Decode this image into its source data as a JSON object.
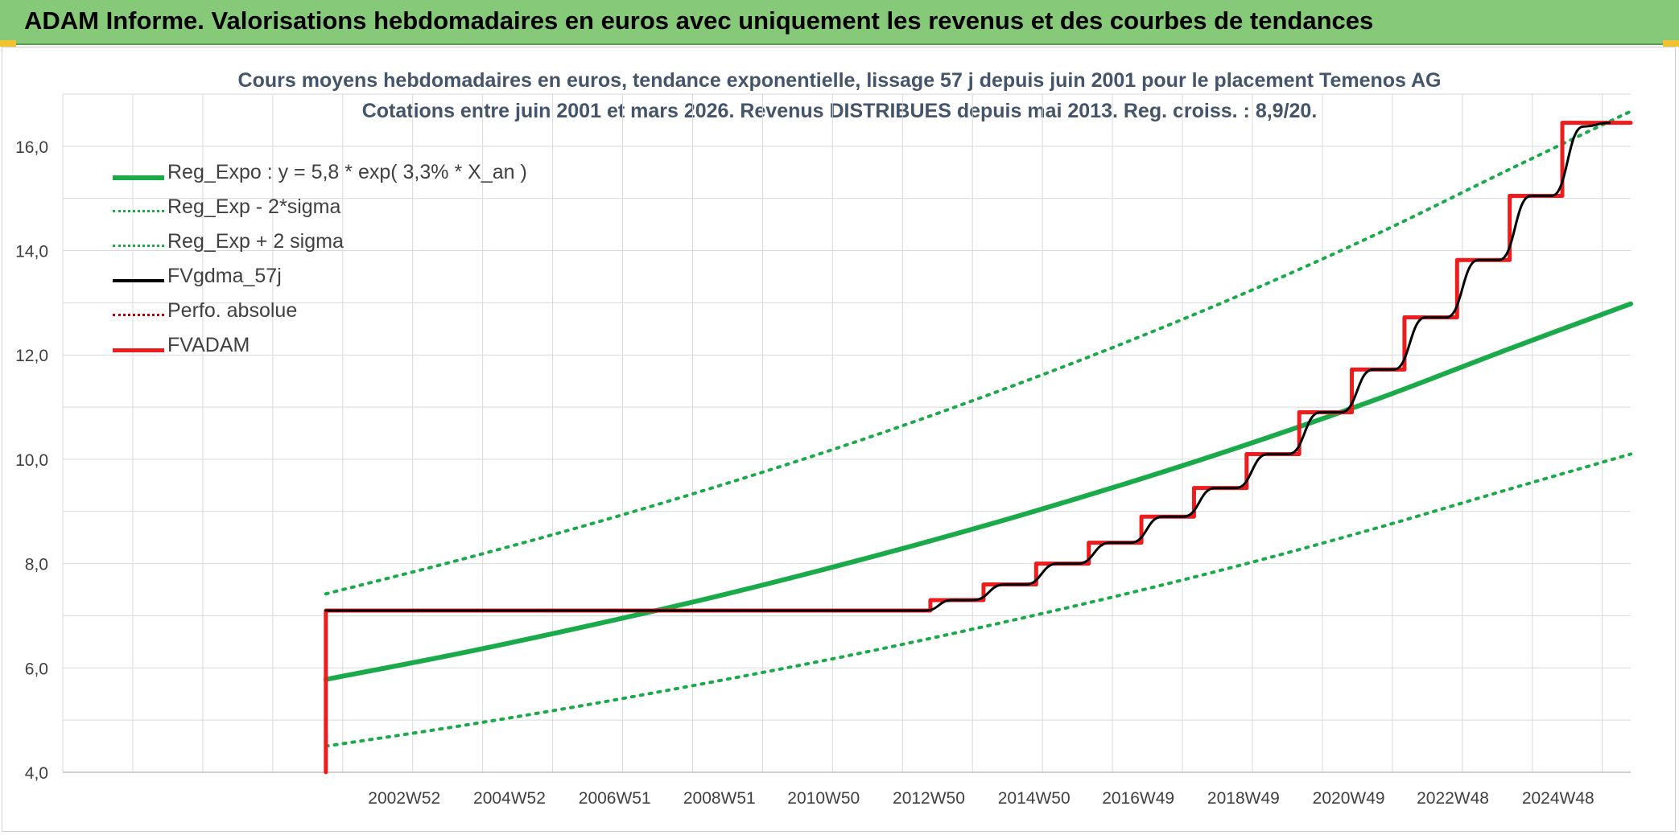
{
  "banner": {
    "title": "ADAM Informe. Valorisations hebdomadaires en euros avec uniquement les revenus et des courbes de tendances"
  },
  "chart_data": {
    "type": "line",
    "title": "Cours moyens hebdomadaires en euros, tendance exponentielle, lissage 57 j depuis juin 2001 pour le placement Temenos AG",
    "subtitle": "Cotations entre juin 2001 et mars 2026. Revenus DISTRIBUES depuis mai 2013. Reg. croiss. : 8,9/20.",
    "xlabel": "",
    "ylabel": "",
    "ylim": [
      4,
      17
    ],
    "xlim": [
      1996.5,
      2026.3
    ],
    "y_ticks": [
      4,
      6,
      8,
      10,
      12,
      14,
      16
    ],
    "y_tick_labels": [
      "4,0",
      "6,0",
      "8,0",
      "10,0",
      "12,0",
      "14,0",
      "16,0"
    ],
    "x_ticks": [
      2002.99,
      2004.99,
      2006.99,
      2008.98,
      2010.96,
      2012.96,
      2014.96,
      2016.94,
      2018.94,
      2020.94,
      2022.92,
      2024.92
    ],
    "x_tick_labels": [
      "2002W52",
      "2004W52",
      "2006W51",
      "2008W51",
      "2010W50",
      "2012W50",
      "2014W50",
      "2016W49",
      "2018W49",
      "2020W49",
      "2022W48",
      "2024W48"
    ],
    "grid": true,
    "legend_position": "top-left",
    "series": [
      {
        "name": "Reg_Expo : y = 5,8 * exp( 3,3% *  X_an )",
        "color": "#1aaa4a",
        "style": "solid",
        "x": [
          2001.5,
          2004.0,
          2006.5,
          2009.0,
          2011.5,
          2014.0,
          2016.5,
          2019.0,
          2021.5,
          2024.0,
          2026.3
        ],
        "values": [
          5.78,
          6.27,
          6.81,
          7.39,
          8.03,
          8.72,
          9.47,
          10.28,
          11.16,
          12.12,
          12.98
        ]
      },
      {
        "name": "Reg_Exp - 2*sigma",
        "color": "#1aaa4a",
        "style": "dotted",
        "x": [
          2001.5,
          2004.0,
          2006.5,
          2009.0,
          2011.5,
          2014.0,
          2016.5,
          2019.0,
          2021.5,
          2024.0,
          2026.3
        ],
        "values": [
          4.5,
          4.88,
          5.3,
          5.76,
          6.25,
          6.79,
          7.37,
          8.0,
          8.69,
          9.43,
          10.1
        ]
      },
      {
        "name": "Reg_Exp + 2 sigma",
        "color": "#1aaa4a",
        "style": "dotted",
        "x": [
          2001.5,
          2004.0,
          2006.5,
          2009.0,
          2011.5,
          2014.0,
          2016.5,
          2019.0,
          2021.5,
          2024.0,
          2026.3
        ],
        "values": [
          7.42,
          8.06,
          8.75,
          9.5,
          10.31,
          11.2,
          12.16,
          13.2,
          14.33,
          15.56,
          16.67
        ]
      },
      {
        "name": "FVgdma_57j",
        "color": "#000000",
        "style": "solid",
        "x": [
          2001.5,
          2012.9,
          2013.4,
          2013.8,
          2014.4,
          2014.8,
          2015.4,
          2015.8,
          2016.4,
          2016.8,
          2017.4,
          2017.8,
          2018.4,
          2018.8,
          2019.4,
          2019.8,
          2020.4,
          2020.8,
          2021.4,
          2021.8,
          2022.4,
          2022.8,
          2023.4,
          2023.8,
          2024.4,
          2024.8,
          2025.4,
          2025.9
        ],
        "values": [
          7.1,
          7.1,
          7.3,
          7.3,
          7.6,
          7.6,
          8.0,
          8.0,
          8.4,
          8.4,
          8.9,
          8.9,
          9.45,
          9.45,
          10.1,
          10.1,
          10.9,
          10.9,
          11.72,
          11.72,
          12.72,
          12.72,
          13.82,
          13.82,
          15.05,
          15.05,
          16.38,
          16.45
        ]
      },
      {
        "name": "Perfo. absolue",
        "color": "#c00000",
        "style": "dotted",
        "x": [],
        "values": []
      },
      {
        "name": "FVADAM",
        "color": "#ee1c1c",
        "style": "step",
        "x": [
          2001.5,
          2001.5,
          2012.99,
          2014.0,
          2015.0,
          2016.0,
          2017.0,
          2018.0,
          2019.0,
          2020.0,
          2021.0,
          2022.0,
          2023.0,
          2024.0,
          2025.0,
          2026.3
        ],
        "values": [
          4.0,
          7.1,
          7.3,
          7.6,
          8.0,
          8.4,
          8.9,
          9.45,
          10.1,
          10.9,
          11.72,
          12.72,
          13.82,
          15.05,
          16.45,
          16.45
        ]
      }
    ]
  }
}
